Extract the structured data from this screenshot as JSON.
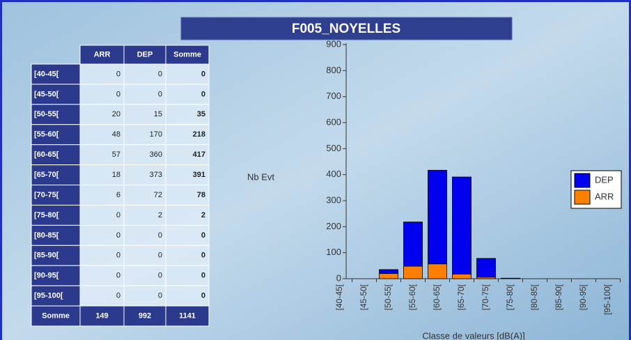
{
  "title": "F005_NOYELLES",
  "table": {
    "header": [
      "ARR",
      "DEP",
      "Somme"
    ],
    "rows": [
      [
        "[40-45[",
        0,
        0,
        0
      ],
      [
        "[45-50[",
        0,
        0,
        0
      ],
      [
        "[50-55[",
        20,
        15,
        35
      ],
      [
        "[55-60[",
        48,
        170,
        218
      ],
      [
        "[60-65[",
        57,
        360,
        417
      ],
      [
        "[65-70[",
        18,
        373,
        391
      ],
      [
        "[70-75[",
        6,
        72,
        78
      ],
      [
        "[75-80[",
        0,
        2,
        2
      ],
      [
        "[80-85[",
        0,
        0,
        0
      ],
      [
        "[85-90[",
        0,
        0,
        0
      ],
      [
        "[90-95[",
        0,
        0,
        0
      ],
      [
        "[95-100[",
        0,
        0,
        0
      ]
    ],
    "footer": [
      "Somme",
      149,
      992,
      1141
    ]
  },
  "chart_data": {
    "type": "stacked_bar",
    "y_label": "Nb Evt",
    "x_label": "Classe de valeurs [dB(A)]",
    "categories": [
      "[40-45[",
      "[45-50[",
      "[50-55[",
      "[55-60[",
      "[60-65[",
      "[65-70[",
      "[70-75[",
      "[75-80[",
      "[80-85[",
      "[85-90[",
      "[90-95[",
      "[95-100["
    ],
    "series": [
      {
        "name": "ARR",
        "color": "#ff8000",
        "values": [
          0,
          0,
          20,
          48,
          57,
          18,
          6,
          0,
          0,
          0,
          0,
          0
        ]
      },
      {
        "name": "DEP",
        "color": "#0000ee",
        "values": [
          0,
          0,
          15,
          170,
          360,
          373,
          72,
          2,
          0,
          0,
          0,
          0
        ]
      }
    ],
    "ylim": [
      0,
      900
    ],
    "yticks": [
      0,
      100,
      200,
      300,
      400,
      500,
      600,
      700,
      800,
      900
    ],
    "legend": "right"
  }
}
